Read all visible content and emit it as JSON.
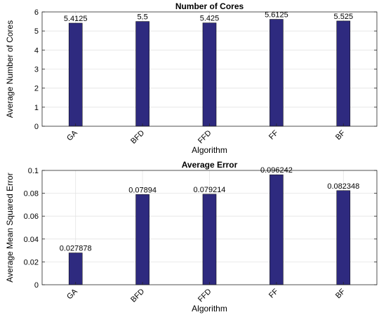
{
  "chart_data": [
    {
      "type": "bar",
      "title": "Number of Cores",
      "xlabel": "Algorithm",
      "ylabel": "Average Number of Cores",
      "categories": [
        "GA",
        "BFD",
        "FFD",
        "FF",
        "BF"
      ],
      "values": [
        5.4125,
        5.5,
        5.425,
        5.6125,
        5.525
      ],
      "value_labels": [
        "5.4125",
        "5.5",
        "5.425",
        "5.6125",
        "5.525"
      ],
      "ylim": [
        0,
        6
      ],
      "yticks": [
        "0",
        "1",
        "2",
        "3",
        "4",
        "5",
        "6"
      ],
      "grid": true,
      "bar_color": "#2e2a7f"
    },
    {
      "type": "bar",
      "title": "Average Error",
      "xlabel": "Algorithm",
      "ylabel": "Average Mean Squared Error",
      "categories": [
        "GA",
        "BFD",
        "FFD",
        "FF",
        "BF"
      ],
      "values": [
        0.027878,
        0.07894,
        0.079214,
        0.096242,
        0.082348
      ],
      "value_labels": [
        "0.027878",
        "0.07894",
        "0.079214",
        "0.096242",
        "0.082348"
      ],
      "ylim": [
        0,
        0.1
      ],
      "yticks": [
        "0",
        "0.02",
        "0.04",
        "0.06",
        "0.08",
        "0.1"
      ],
      "grid": true,
      "bar_color": "#2e2a7f"
    }
  ]
}
